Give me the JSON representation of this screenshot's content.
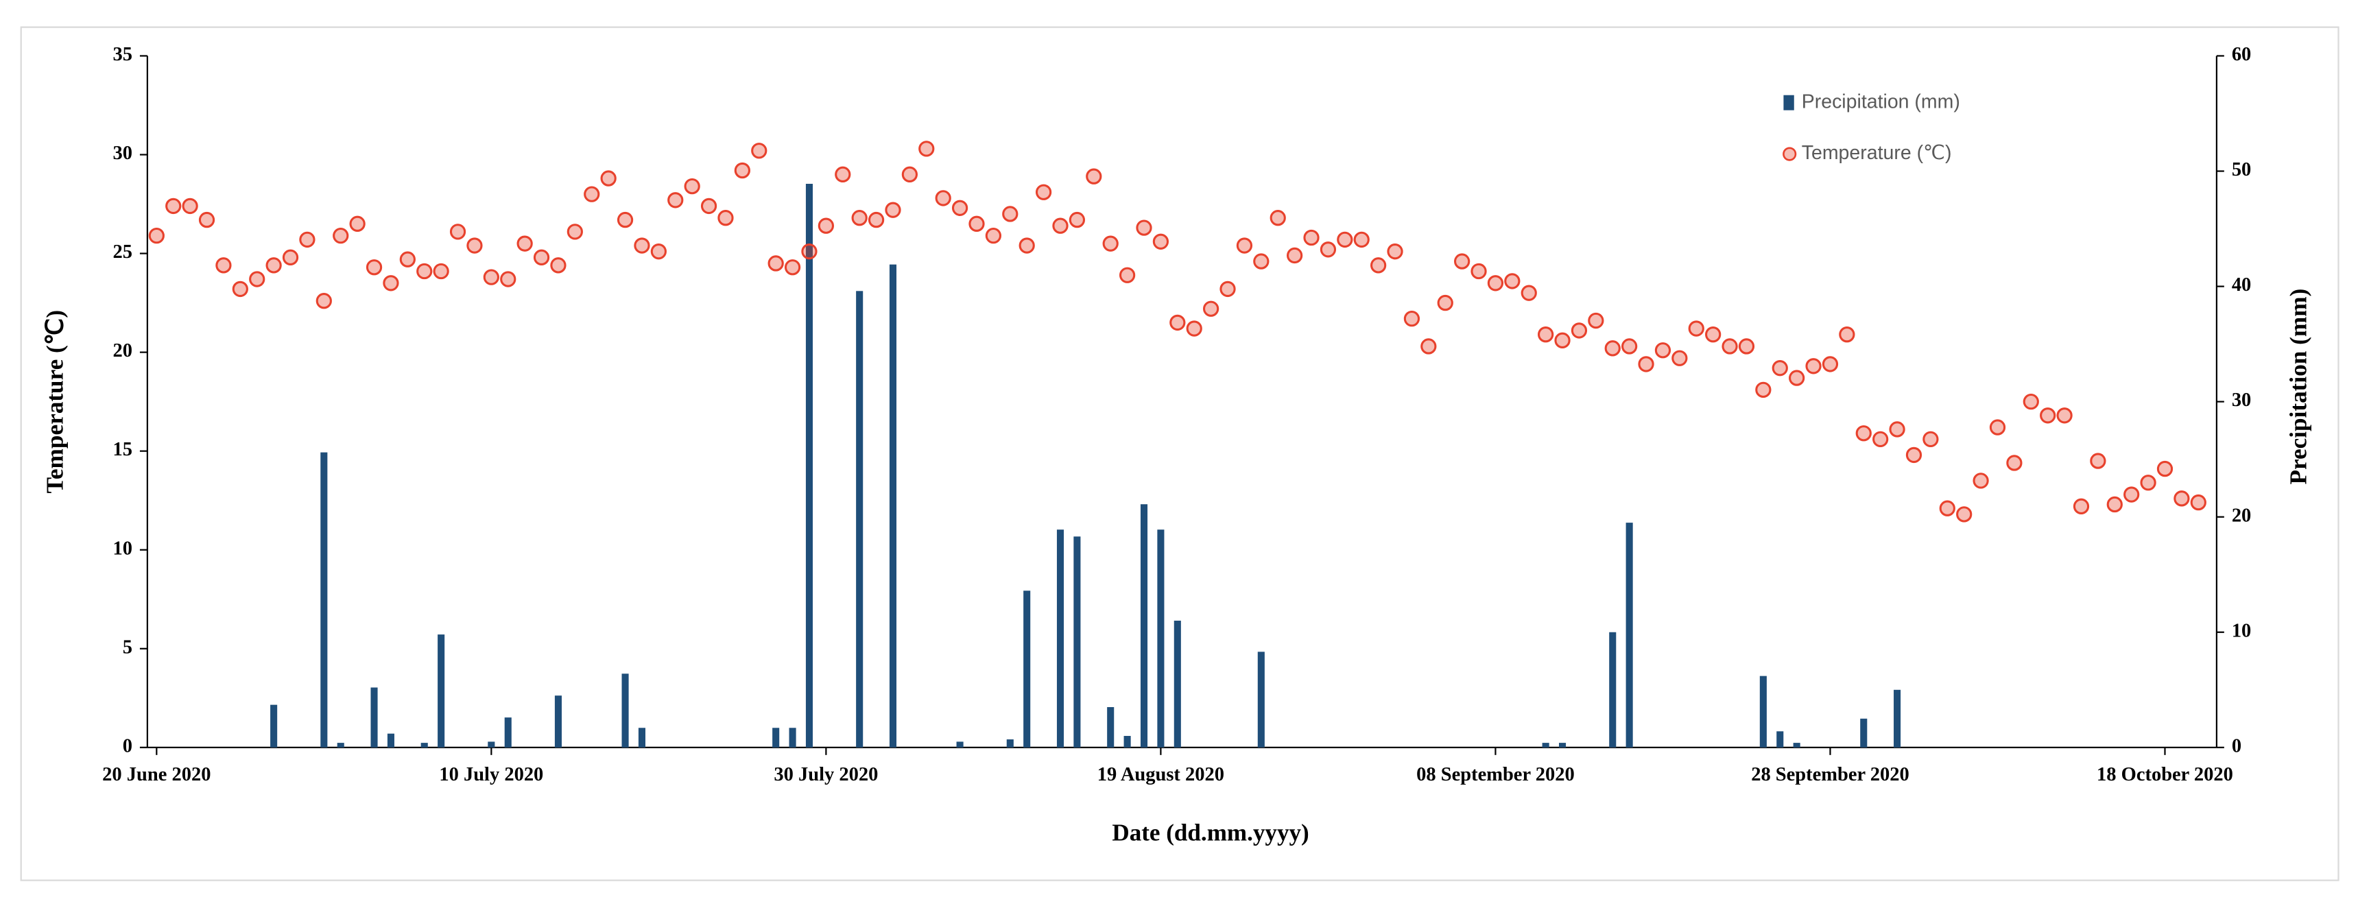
{
  "chart_data": {
    "type": "combo",
    "x_label": "Date (dd.mm.yyyy)",
    "y_label": "Temperature (℃)",
    "y2_label": "Precipitation (mm)",
    "legend": "upper right",
    "grid": false,
    "x": [
      "2020-06-20",
      "2020-06-21",
      "2020-06-22",
      "2020-06-23",
      "2020-06-24",
      "2020-06-25",
      "2020-06-26",
      "2020-06-27",
      "2020-06-28",
      "2020-06-29",
      "2020-06-30",
      "2020-07-01",
      "2020-07-02",
      "2020-07-03",
      "2020-07-04",
      "2020-07-05",
      "2020-07-06",
      "2020-07-07",
      "2020-07-08",
      "2020-07-09",
      "2020-07-10",
      "2020-07-11",
      "2020-07-12",
      "2020-07-13",
      "2020-07-14",
      "2020-07-15",
      "2020-07-16",
      "2020-07-17",
      "2020-07-18",
      "2020-07-19",
      "2020-07-20",
      "2020-07-21",
      "2020-07-22",
      "2020-07-23",
      "2020-07-24",
      "2020-07-25",
      "2020-07-26",
      "2020-07-27",
      "2020-07-28",
      "2020-07-29",
      "2020-07-30",
      "2020-07-31",
      "2020-08-01",
      "2020-08-02",
      "2020-08-03",
      "2020-08-04",
      "2020-08-05",
      "2020-08-06",
      "2020-08-07",
      "2020-08-08",
      "2020-08-09",
      "2020-08-10",
      "2020-08-11",
      "2020-08-12",
      "2020-08-13",
      "2020-08-14",
      "2020-08-15",
      "2020-08-16",
      "2020-08-17",
      "2020-08-18",
      "2020-08-19",
      "2020-08-20",
      "2020-08-21",
      "2020-08-22",
      "2020-08-23",
      "2020-08-24",
      "2020-08-25",
      "2020-08-26",
      "2020-08-27",
      "2020-08-28",
      "2020-08-29",
      "2020-08-30",
      "2020-08-31",
      "2020-09-01",
      "2020-09-02",
      "2020-09-03",
      "2020-09-04",
      "2020-09-05",
      "2020-09-06",
      "2020-09-07",
      "2020-09-08",
      "2020-09-09",
      "2020-09-10",
      "2020-09-11",
      "2020-09-12",
      "2020-09-13",
      "2020-09-14",
      "2020-09-15",
      "2020-09-16",
      "2020-09-17",
      "2020-09-18",
      "2020-09-19",
      "2020-09-20",
      "2020-09-21",
      "2020-09-22",
      "2020-09-23",
      "2020-09-24",
      "2020-09-25",
      "2020-09-26",
      "2020-09-27",
      "2020-09-28",
      "2020-09-29",
      "2020-09-30",
      "2020-10-01",
      "2020-10-02",
      "2020-10-03",
      "2020-10-04",
      "2020-10-05",
      "2020-10-06",
      "2020-10-07",
      "2020-10-08",
      "2020-10-09",
      "2020-10-10",
      "2020-10-11",
      "2020-10-12",
      "2020-10-13",
      "2020-10-14",
      "2020-10-15",
      "2020-10-16",
      "2020-10-17",
      "2020-10-18",
      "2020-10-19",
      "2020-10-20"
    ],
    "xlim": [
      "2020-06-19",
      "2020-10-21"
    ],
    "xticks": [
      {
        "value": "2020-06-20",
        "label": "20 June 2020"
      },
      {
        "value": "2020-07-10",
        "label": "10 July 2020"
      },
      {
        "value": "2020-07-30",
        "label": "30 July 2020"
      },
      {
        "value": "2020-08-19",
        "label": "19 August 2020"
      },
      {
        "value": "2020-09-08",
        "label": "08 September 2020"
      },
      {
        "value": "2020-09-28",
        "label": "28 September 2020"
      },
      {
        "value": "2020-10-18",
        "label": "18 October 2020"
      }
    ],
    "ylim": [
      0,
      35
    ],
    "yticks": [
      0,
      5,
      10,
      15,
      20,
      25,
      30,
      35
    ],
    "y2lim": [
      0,
      60
    ],
    "y2ticks": [
      0,
      10,
      20,
      30,
      40,
      50,
      60
    ],
    "series": [
      {
        "name": "Precipitation (mm)",
        "type": "bar",
        "axis": "y2",
        "color": "#1f4e79",
        "values": [
          0,
          0,
          0,
          0,
          0,
          0,
          0,
          3.7,
          0,
          0,
          25.6,
          0.4,
          0,
          5.2,
          1.2,
          0,
          0.4,
          9.8,
          0,
          0,
          0.5,
          2.6,
          0,
          0,
          4.5,
          0,
          0,
          0,
          6.4,
          1.7,
          0,
          0,
          0,
          0,
          0,
          0,
          0,
          1.7,
          1.7,
          48.9,
          0,
          0,
          39.6,
          0,
          41.9,
          0,
          0,
          0,
          0.5,
          0,
          0,
          0.7,
          13.6,
          0,
          18.9,
          18.3,
          0,
          3.5,
          1,
          21.1,
          18.9,
          11,
          0,
          0,
          0,
          0,
          8.3,
          0,
          0,
          0,
          0,
          0,
          0,
          0,
          0,
          0,
          0,
          0,
          0,
          0,
          0,
          0,
          0,
          0.4,
          0.4,
          0,
          0,
          10,
          19.5,
          0,
          0,
          0,
          0,
          0,
          0,
          0,
          6.2,
          1.4,
          0.4,
          0,
          0,
          0,
          2.5,
          0,
          5,
          0,
          0,
          0,
          0,
          0,
          0,
          0,
          0,
          0,
          0,
          0,
          0,
          0,
          0,
          0,
          0,
          0,
          0
        ]
      },
      {
        "name": "Temperature (℃)",
        "type": "scatter",
        "axis": "y",
        "color": "#e8412c",
        "values": [
          25.9,
          27.4,
          27.4,
          26.7,
          24.4,
          23.2,
          23.7,
          24.4,
          24.8,
          25.7,
          22.6,
          25.9,
          26.5,
          24.3,
          23.5,
          24.7,
          24.1,
          24.1,
          26.1,
          25.4,
          23.8,
          23.7,
          25.5,
          24.8,
          24.4,
          26.1,
          28.0,
          28.8,
          26.7,
          25.4,
          25.1,
          27.7,
          28.4,
          27.4,
          26.8,
          29.2,
          30.2,
          24.5,
          24.3,
          25.1,
          26.4,
          29.0,
          26.8,
          26.7,
          27.2,
          29.0,
          30.3,
          27.8,
          27.3,
          26.5,
          25.9,
          27.0,
          25.4,
          28.1,
          26.4,
          26.7,
          28.9,
          25.5,
          23.9,
          26.3,
          25.6,
          21.5,
          21.2,
          22.2,
          23.2,
          25.4,
          24.6,
          26.8,
          24.9,
          25.8,
          25.2,
          25.7,
          25.7,
          24.4,
          25.1,
          21.7,
          20.3,
          22.5,
          24.6,
          24.1,
          23.5,
          23.6,
          23.0,
          20.9,
          20.6,
          21.1,
          21.6,
          20.2,
          20.3,
          19.4,
          20.1,
          19.7,
          21.2,
          20.9,
          20.3,
          20.3,
          18.1,
          19.2,
          18.7,
          19.3,
          19.4,
          20.9,
          15.9,
          15.6,
          16.1,
          14.8,
          15.6,
          12.1,
          11.8,
          13.5,
          16.2,
          14.4,
          17.5,
          16.8,
          16.8,
          12.2,
          14.5,
          12.3,
          12.8,
          13.4,
          14.1,
          12.6,
          12.4
        ]
      }
    ]
  }
}
